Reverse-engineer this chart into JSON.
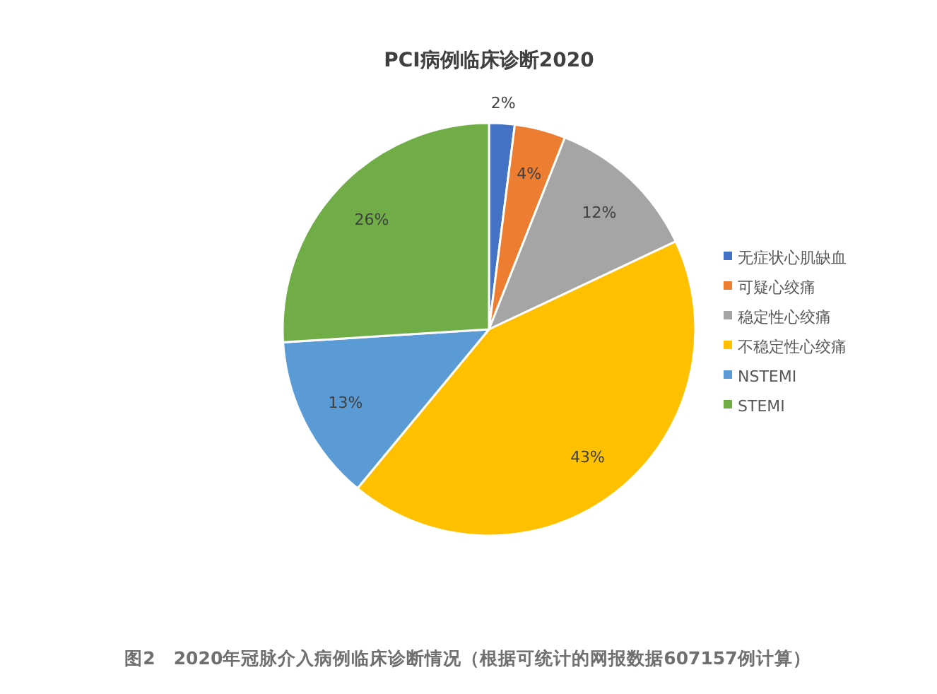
{
  "chart_data": {
    "type": "pie",
    "title": "PCI病例临床诊断2020",
    "categories": [
      "无症状心肌缺血",
      "可疑心绞痛",
      "稳定性心绞痛",
      "不稳定性心绞痛",
      "NSTEMI",
      "STEMI"
    ],
    "values": [
      2,
      4,
      12,
      43,
      13,
      26
    ],
    "value_labels": [
      "2%",
      "4%",
      "12%",
      "43%",
      "13%",
      "26%"
    ],
    "colors": [
      "#4472c4",
      "#ed7d31",
      "#a5a5a5",
      "#ffc000",
      "#5b9bd5",
      "#70ad47"
    ],
    "legend": "right",
    "annotations": [
      "图2　2020年冠脉介入病例临床诊断情况（根据可统计的网报数据607157例计算）"
    ]
  }
}
